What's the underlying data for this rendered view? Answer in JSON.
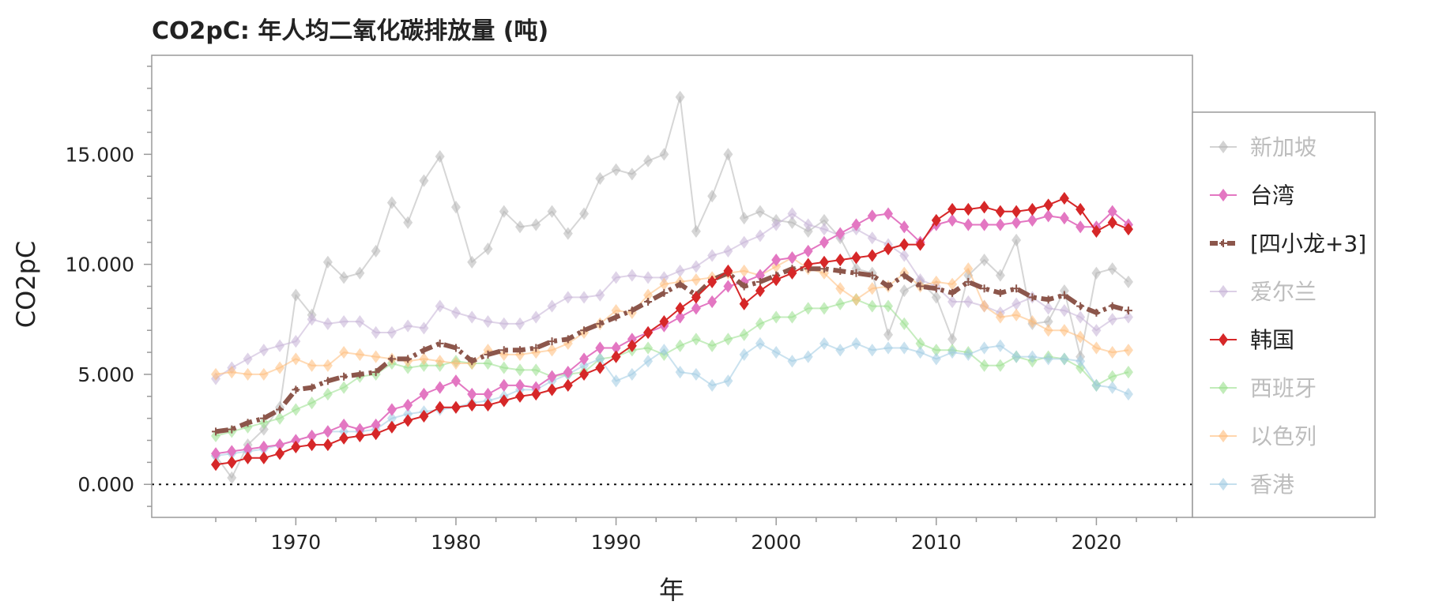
{
  "chart_data": {
    "type": "line",
    "title": "CO2pC: 年人均二氧化碳排放量 (吨)",
    "xlabel": "年",
    "ylabel": "CO2pC",
    "xlim": [
      1961,
      2026
    ],
    "ylim": [
      -1.5,
      19.5
    ],
    "x_ticks": [
      1970,
      1980,
      1990,
      2000,
      2010,
      2020
    ],
    "x_tick_labels": [
      "1970",
      "1980",
      "1990",
      "2000",
      "2010",
      "2020"
    ],
    "y_ticks": [
      0,
      5,
      10,
      15
    ],
    "y_tick_labels": [
      "0.000",
      "5.000",
      "10.000",
      "15.000"
    ],
    "reference_line": 0,
    "legend_position": "right",
    "x": [
      1965,
      1966,
      1967,
      1968,
      1969,
      1970,
      1971,
      1972,
      1973,
      1974,
      1975,
      1976,
      1977,
      1978,
      1979,
      1980,
      1981,
      1982,
      1983,
      1984,
      1985,
      1986,
      1987,
      1988,
      1989,
      1990,
      1991,
      1992,
      1993,
      1994,
      1995,
      1996,
      1997,
      1998,
      1999,
      2000,
      2001,
      2002,
      2003,
      2004,
      2005,
      2006,
      2007,
      2008,
      2009,
      2010,
      2011,
      2012,
      2013,
      2014,
      2015,
      2016,
      2017,
      2018,
      2019,
      2020,
      2021,
      2022
    ],
    "series": [
      {
        "name": "新加坡",
        "color": "#b5b5b5",
        "style": "solid",
        "marker": "diamond",
        "highlighted": false,
        "values": [
          1.3,
          0.3,
          1.8,
          2.5,
          3.5,
          8.6,
          7.7,
          10.1,
          9.4,
          9.6,
          10.6,
          12.8,
          11.9,
          13.8,
          14.9,
          12.6,
          10.1,
          10.7,
          12.4,
          11.7,
          11.8,
          12.4,
          11.4,
          12.3,
          13.9,
          14.3,
          14.1,
          14.7,
          15.0,
          17.6,
          11.5,
          13.1,
          15.0,
          12.1,
          12.4,
          12.0,
          11.9,
          11.5,
          12.0,
          11.2,
          9.8,
          9.6,
          6.8,
          8.8,
          9.2,
          8.5,
          6.6,
          9.5,
          10.2,
          9.5,
          11.1,
          7.3,
          7.4,
          8.8,
          5.8,
          9.6,
          9.8,
          9.2
        ]
      },
      {
        "name": "台湾",
        "color": "#e377c2",
        "style": "solid",
        "marker": "diamond",
        "highlighted": true,
        "values": [
          1.4,
          1.5,
          1.6,
          1.7,
          1.8,
          2.0,
          2.2,
          2.4,
          2.7,
          2.5,
          2.7,
          3.4,
          3.6,
          4.1,
          4.4,
          4.7,
          4.1,
          4.1,
          4.5,
          4.5,
          4.4,
          4.9,
          5.1,
          5.7,
          6.2,
          6.2,
          6.6,
          6.9,
          7.2,
          7.6,
          8.0,
          8.3,
          9.0,
          9.2,
          9.5,
          10.2,
          10.3,
          10.6,
          11.0,
          11.4,
          11.8,
          12.2,
          12.3,
          11.7,
          11.0,
          11.8,
          12.0,
          11.8,
          11.8,
          11.8,
          11.9,
          12.0,
          12.2,
          12.1,
          11.7,
          11.7,
          12.4,
          11.8
        ]
      },
      {
        "name": "[四小龙+3]",
        "color": "#8c564b",
        "style": "dashdot",
        "marker": "plus",
        "highlighted": true,
        "values": [
          2.4,
          2.5,
          2.8,
          3.0,
          3.4,
          4.3,
          4.4,
          4.7,
          4.9,
          5.0,
          5.1,
          5.7,
          5.7,
          6.1,
          6.4,
          6.2,
          5.6,
          5.9,
          6.1,
          6.1,
          6.2,
          6.5,
          6.6,
          7.0,
          7.3,
          7.6,
          7.9,
          8.3,
          8.7,
          9.1,
          8.6,
          9.3,
          9.6,
          9.0,
          9.2,
          9.5,
          9.8,
          9.8,
          9.8,
          9.7,
          9.6,
          9.5,
          9.0,
          9.5,
          9.0,
          8.9,
          8.7,
          9.2,
          8.9,
          8.7,
          8.9,
          8.5,
          8.4,
          8.6,
          8.1,
          7.8,
          8.1,
          7.9
        ]
      },
      {
        "name": "爱尔兰",
        "color": "#c5b0d5",
        "style": "solid",
        "marker": "diamond",
        "highlighted": false,
        "values": [
          4.8,
          5.3,
          5.7,
          6.1,
          6.3,
          6.5,
          7.5,
          7.3,
          7.4,
          7.4,
          6.9,
          6.9,
          7.2,
          7.1,
          8.1,
          7.8,
          7.6,
          7.4,
          7.3,
          7.3,
          7.6,
          8.1,
          8.5,
          8.5,
          8.6,
          9.4,
          9.5,
          9.4,
          9.4,
          9.7,
          9.9,
          10.4,
          10.6,
          11.0,
          11.3,
          11.8,
          12.3,
          11.8,
          11.6,
          11.3,
          11.6,
          11.2,
          10.9,
          10.4,
          9.3,
          9.0,
          8.3,
          8.3,
          8.1,
          7.8,
          8.2,
          8.5,
          8.0,
          7.9,
          7.6,
          7.0,
          7.5,
          7.6
        ]
      },
      {
        "name": "韩国",
        "color": "#d62728",
        "style": "solid",
        "marker": "diamond",
        "highlighted": true,
        "values": [
          0.9,
          1.0,
          1.2,
          1.2,
          1.4,
          1.7,
          1.8,
          1.8,
          2.1,
          2.2,
          2.3,
          2.6,
          2.9,
          3.1,
          3.5,
          3.5,
          3.6,
          3.6,
          3.8,
          4.0,
          4.1,
          4.3,
          4.5,
          5.0,
          5.3,
          5.8,
          6.3,
          6.9,
          7.4,
          8.0,
          8.5,
          9.2,
          9.7,
          8.2,
          8.8,
          9.3,
          9.6,
          10.0,
          10.1,
          10.2,
          10.3,
          10.4,
          10.7,
          10.9,
          10.9,
          12.0,
          12.5,
          12.5,
          12.6,
          12.4,
          12.4,
          12.5,
          12.7,
          13.0,
          12.5,
          11.5,
          11.9,
          11.6
        ]
      },
      {
        "name": "西班牙",
        "color": "#98df8a",
        "style": "solid",
        "marker": "diamond",
        "highlighted": false,
        "values": [
          2.2,
          2.4,
          2.6,
          2.8,
          3.0,
          3.4,
          3.7,
          4.1,
          4.4,
          4.9,
          5.0,
          5.5,
          5.3,
          5.4,
          5.4,
          5.6,
          5.5,
          5.5,
          5.3,
          5.2,
          5.2,
          4.9,
          5.0,
          5.1,
          5.7,
          5.8,
          6.1,
          6.2,
          5.9,
          6.3,
          6.6,
          6.3,
          6.6,
          6.8,
          7.3,
          7.6,
          7.6,
          8.0,
          8.0,
          8.2,
          8.4,
          8.1,
          8.1,
          7.3,
          6.4,
          6.1,
          6.1,
          6.0,
          5.4,
          5.4,
          5.8,
          5.6,
          5.8,
          5.7,
          5.3,
          4.5,
          4.9,
          5.1
        ]
      },
      {
        "name": "以色列",
        "color": "#ffbb78",
        "style": "solid",
        "marker": "diamond",
        "highlighted": false,
        "values": [
          5.0,
          5.1,
          5.0,
          5.0,
          5.3,
          5.7,
          5.4,
          5.4,
          6.0,
          5.9,
          5.8,
          5.7,
          5.6,
          5.7,
          5.6,
          5.5,
          5.5,
          6.1,
          5.9,
          5.9,
          6.0,
          6.1,
          6.4,
          6.9,
          7.3,
          7.9,
          7.8,
          8.6,
          9.1,
          9.2,
          9.3,
          9.4,
          9.6,
          9.7,
          9.5,
          9.9,
          10.3,
          9.8,
          9.6,
          8.9,
          8.4,
          8.9,
          9.0,
          9.6,
          9.0,
          9.2,
          9.1,
          9.8,
          8.1,
          7.6,
          7.7,
          7.4,
          7.0,
          7.0,
          6.7,
          6.2,
          6.0,
          6.1
        ]
      },
      {
        "name": "香港",
        "color": "#9ecae1",
        "style": "solid",
        "marker": "diamond",
        "highlighted": false,
        "values": [
          1.3,
          1.4,
          1.5,
          1.6,
          1.8,
          2.0,
          2.2,
          2.4,
          2.4,
          2.4,
          2.5,
          3.0,
          3.2,
          3.3,
          3.4,
          3.5,
          3.7,
          3.8,
          4.0,
          4.3,
          4.3,
          4.7,
          5.0,
          5.4,
          5.7,
          4.7,
          5.0,
          5.6,
          6.1,
          5.1,
          5.0,
          4.5,
          4.7,
          5.9,
          6.4,
          6.0,
          5.6,
          5.8,
          6.4,
          6.1,
          6.4,
          6.1,
          6.2,
          6.2,
          6.0,
          5.7,
          6.0,
          5.9,
          6.2,
          6.3,
          5.8,
          5.8,
          5.7,
          5.7,
          5.6,
          4.5,
          4.4,
          4.1
        ]
      }
    ]
  }
}
